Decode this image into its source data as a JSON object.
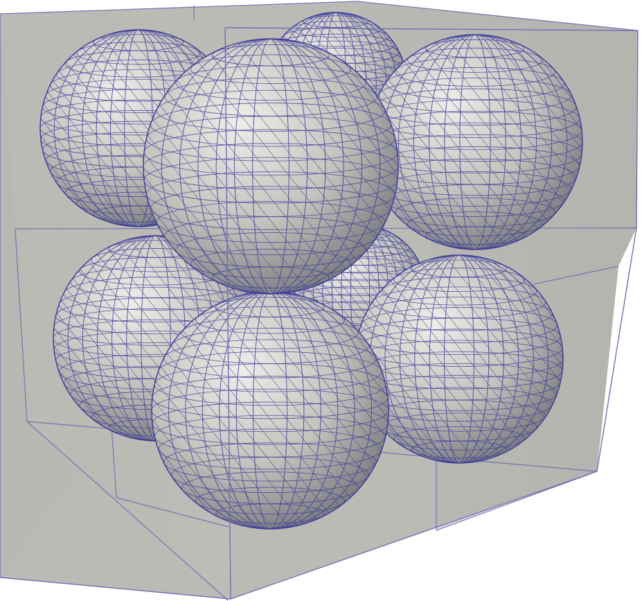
{
  "scene": {
    "background": "#ffffff",
    "box_fill": "#b9b7b2",
    "box_edge": "#6f6fb4",
    "sphere_fill_light": "#eceae4",
    "sphere_fill_mid": "#b8b6b1",
    "sphere_fill_dark": "#7a7a7e",
    "mesh_color": "#3a3a9a",
    "sphere_count": 8
  }
}
